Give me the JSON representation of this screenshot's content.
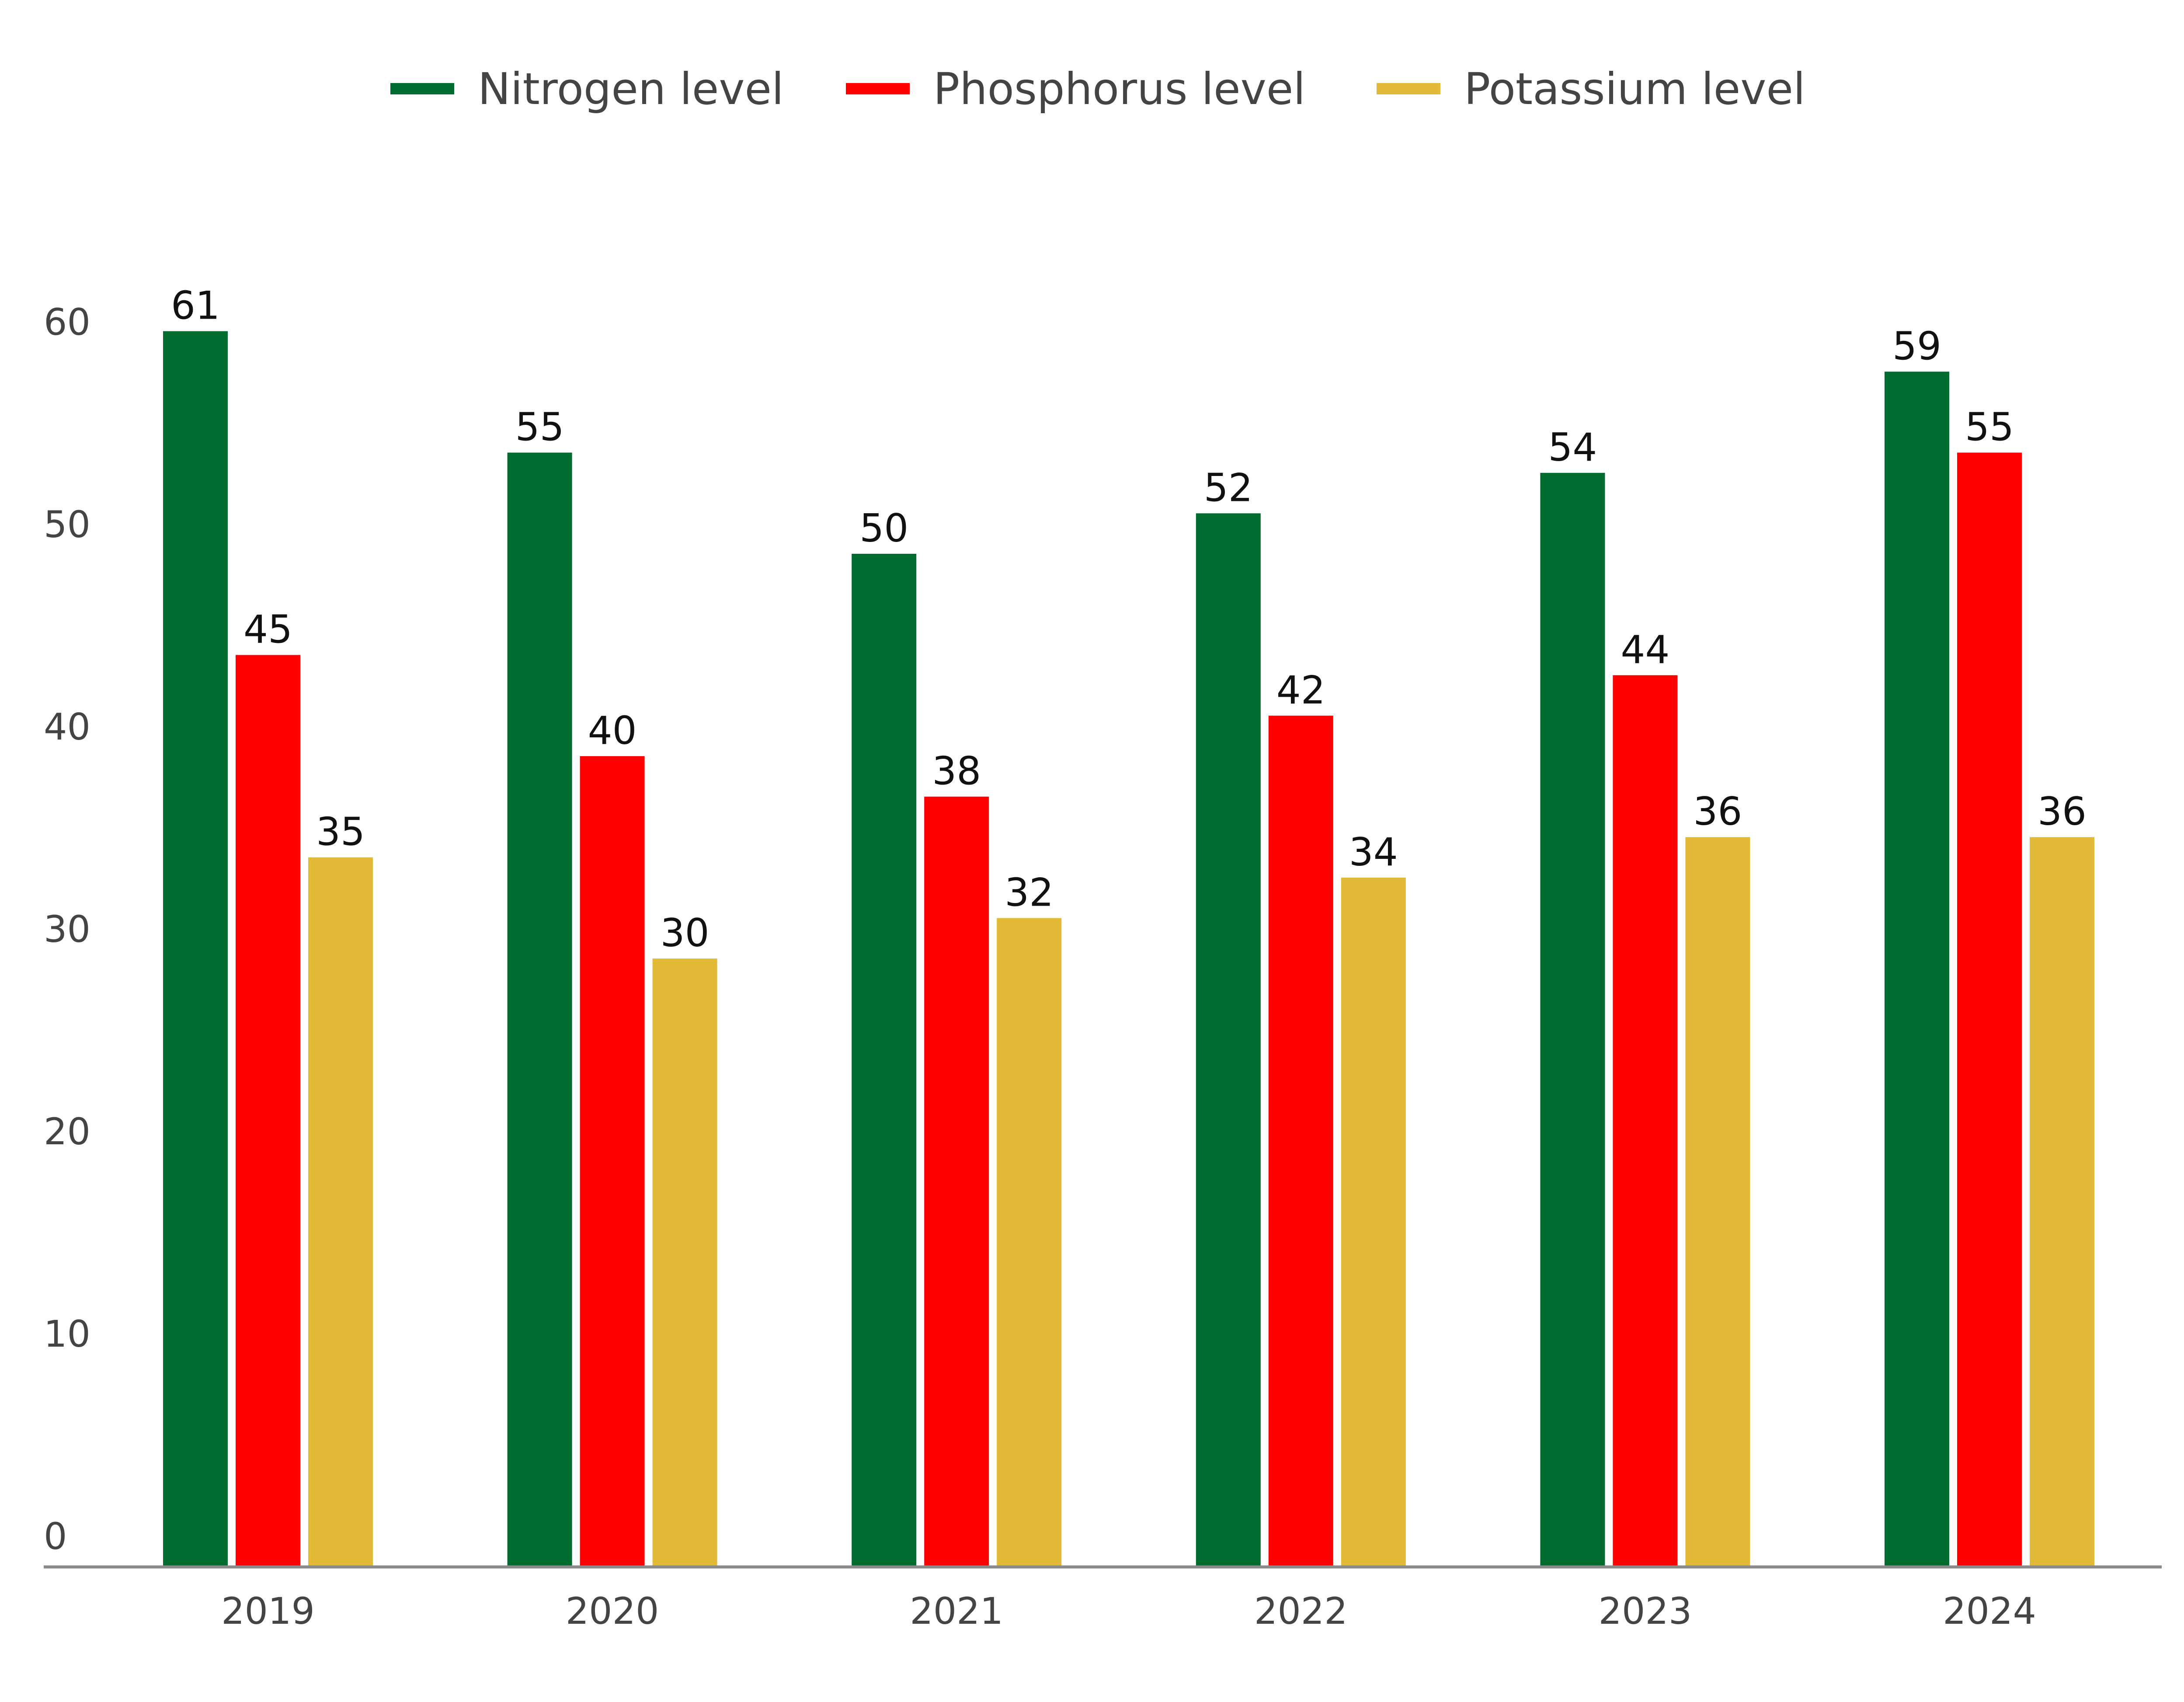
{
  "chart_data": {
    "type": "bar",
    "title": "",
    "xlabel": "",
    "ylabel": "",
    "categories": [
      "2019",
      "2020",
      "2021",
      "2022",
      "2023",
      "2024"
    ],
    "series": [
      {
        "name": "Nitrogen level",
        "color": "#006B2E",
        "values": [
          61,
          55,
          50,
          52,
          54,
          59
        ]
      },
      {
        "name": "Phosphorus level",
        "color": "#FF0000",
        "values": [
          45,
          40,
          38,
          42,
          44,
          55
        ]
      },
      {
        "name": "Potassium level",
        "color": "#E3BA37",
        "values": [
          35,
          30,
          32,
          34,
          36,
          36
        ]
      }
    ],
    "y_ticks": [
      0,
      10,
      20,
      30,
      40,
      50,
      60
    ],
    "ylim": [
      0,
      60
    ],
    "grid": false,
    "legend_position": "top-center",
    "data_labels": true
  }
}
